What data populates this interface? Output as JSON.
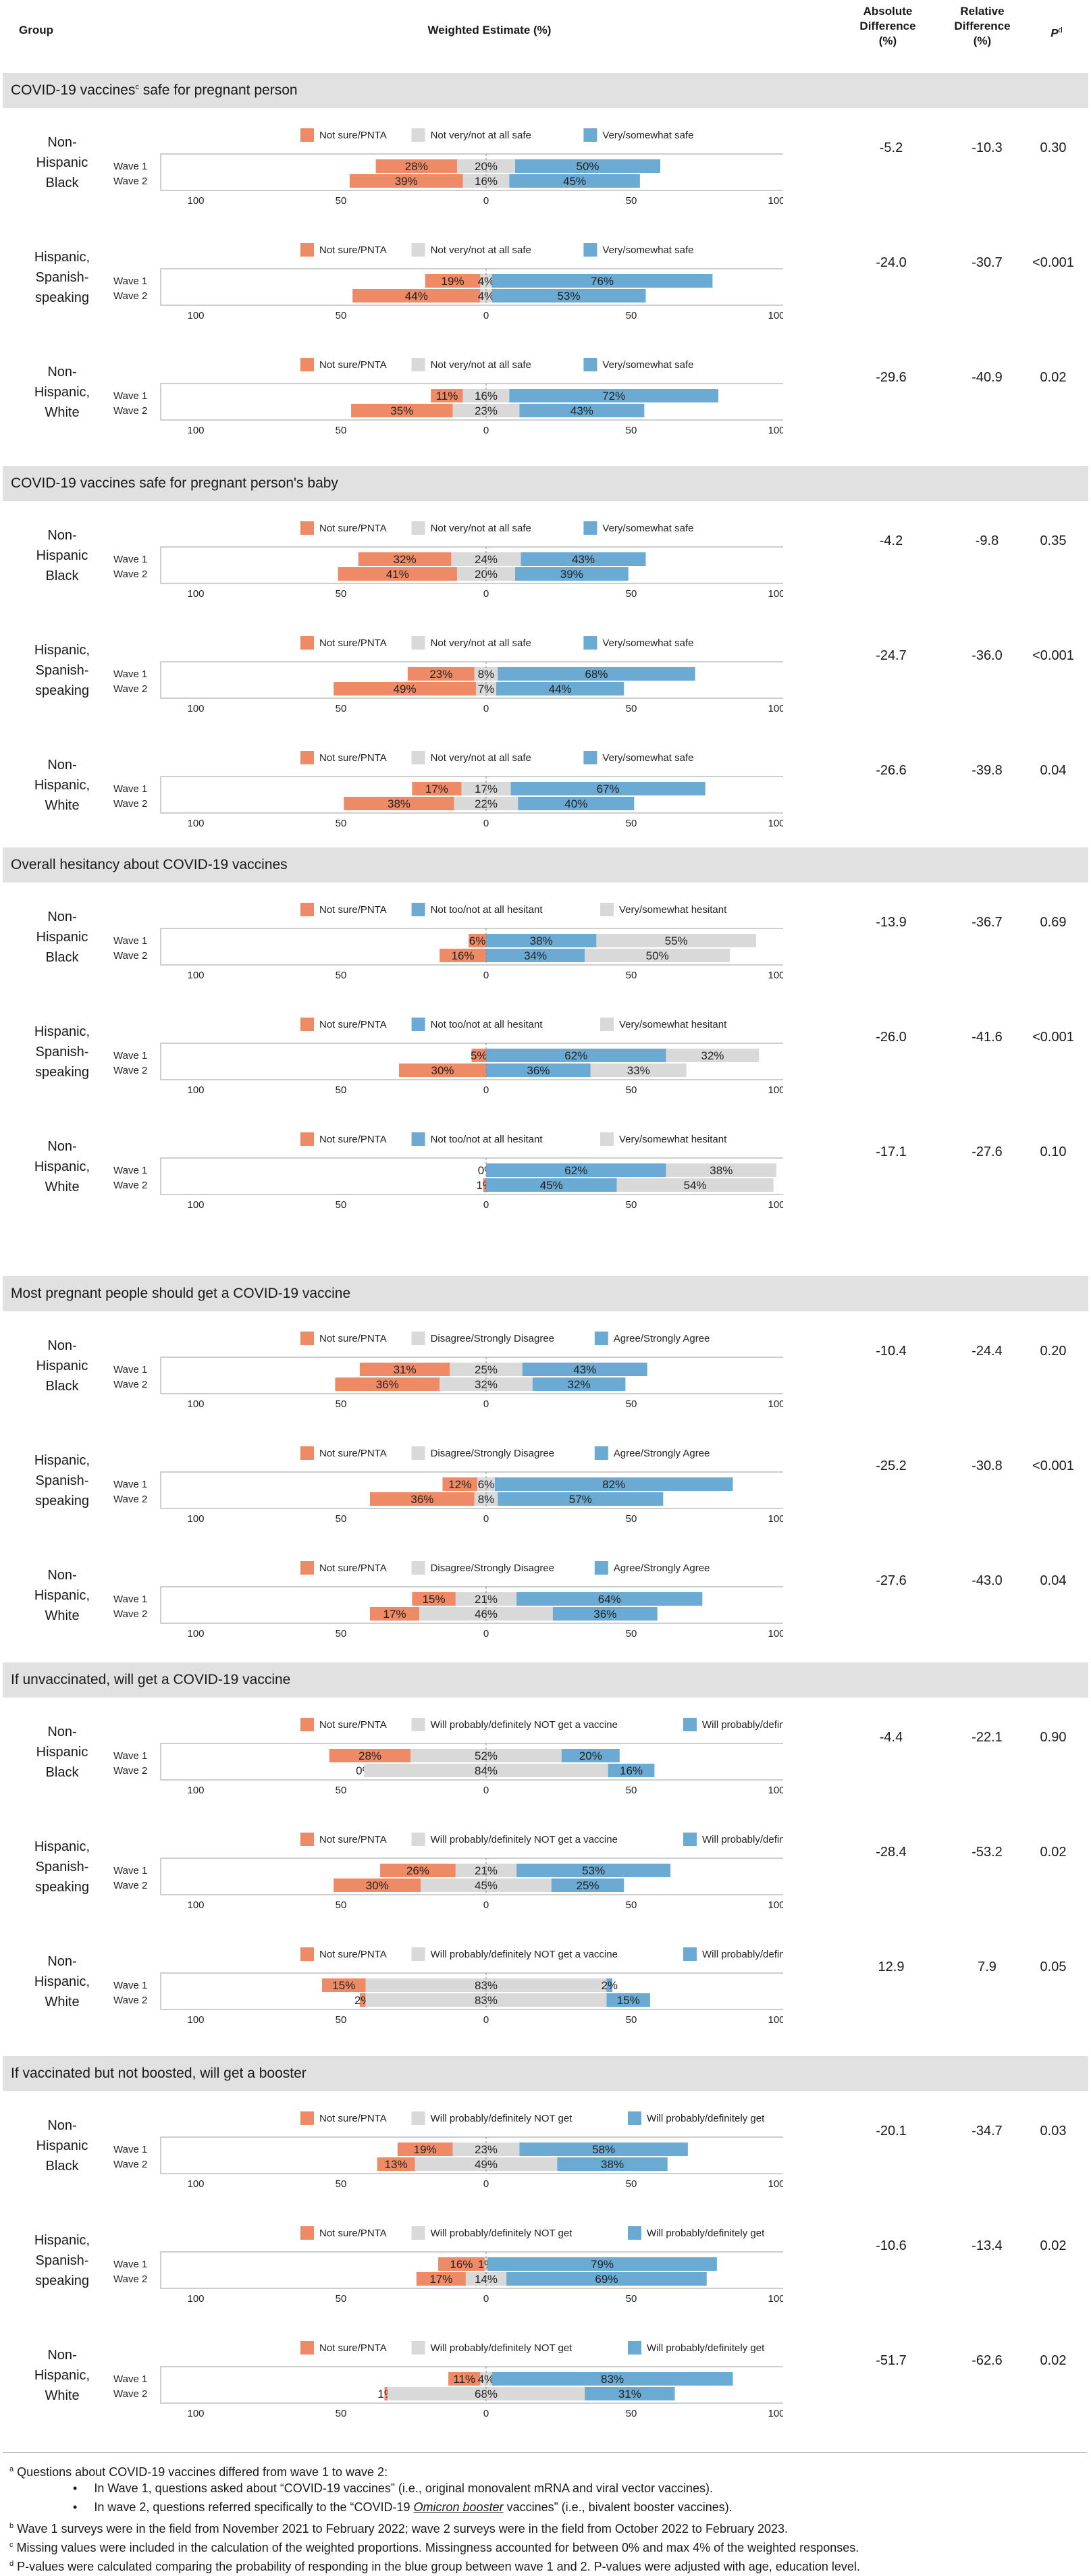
{
  "header": {
    "group": "Group",
    "estimate": "Weighted Estimate (%)",
    "abs_diff": "Absolute Difference (%)",
    "rel_diff": "Relative Difference (%)",
    "p": "P",
    "p_sup": "d"
  },
  "colors": {
    "not_sure": "#ee8a65",
    "grey": "#d9d9d9",
    "blue": "#6aaad3"
  },
  "axis_ticks": [
    "100",
    "50",
    "0",
    "50",
    "100"
  ],
  "chart_data": {
    "type": "bar",
    "sections": [
      {
        "title": "COVID-19 vaccines",
        "title_sup": "c",
        "title_rest": " safe for pregnant person",
        "legend": [
          "Not sure/PNTA",
          "Not very/not at all safe",
          "Very/somewhat safe"
        ],
        "groups": [
          {
            "name": "Non-\nHispanic\nBlack",
            "waves": [
              {
                "label": "Wave 1",
                "not_sure": 28,
                "grey": 20,
                "blue": 50
              },
              {
                "label": "Wave 2",
                "not_sure": 39,
                "grey": 16,
                "blue": 45
              }
            ],
            "abs": "-5.2",
            "rel": "-10.3",
            "p": "0.30"
          },
          {
            "name": "Hispanic,\nSpanish-\nspeaking",
            "waves": [
              {
                "label": "Wave 1",
                "not_sure": 19,
                "grey": 4,
                "blue": 76
              },
              {
                "label": "Wave 2",
                "not_sure": 44,
                "grey": 4,
                "blue": 53
              }
            ],
            "abs": "-24.0",
            "rel": "-30.7",
            "p": "<0.001"
          },
          {
            "name": "Non-\nHispanic,\nWhite",
            "waves": [
              {
                "label": "Wave 1",
                "not_sure": 11,
                "grey": 16,
                "blue": 72
              },
              {
                "label": "Wave 2",
                "not_sure": 35,
                "grey": 23,
                "blue": 43
              }
            ],
            "abs": "-29.6",
            "rel": "-40.9",
            "p": "0.02"
          }
        ]
      },
      {
        "title": "COVID-19 vaccines safe for pregnant person's baby",
        "title_sup": "",
        "title_rest": "",
        "legend": [
          "Not sure/PNTA",
          "Not very/not at all safe",
          "Very/somewhat safe"
        ],
        "groups": [
          {
            "name": "Non-\nHispanic\nBlack",
            "waves": [
              {
                "label": "Wave 1",
                "not_sure": 32,
                "grey": 24,
                "blue": 43
              },
              {
                "label": "Wave 2",
                "not_sure": 41,
                "grey": 20,
                "blue": 39
              }
            ],
            "abs": "-4.2",
            "rel": "-9.8",
            "p": "0.35"
          },
          {
            "name": "Hispanic,\nSpanish-\nspeaking",
            "waves": [
              {
                "label": "Wave 1",
                "not_sure": 23,
                "grey": 8,
                "blue": 68
              },
              {
                "label": "Wave 2",
                "not_sure": 49,
                "grey": 7,
                "blue": 44
              }
            ],
            "abs": "-24.7",
            "rel": "-36.0",
            "p": "<0.001"
          },
          {
            "name": "Non-\nHispanic,\nWhite",
            "waves": [
              {
                "label": "Wave 1",
                "not_sure": 17,
                "grey": 17,
                "blue": 67
              },
              {
                "label": "Wave 2",
                "not_sure": 38,
                "grey": 22,
                "blue": 40
              }
            ],
            "abs": "-26.6",
            "rel": "-39.8",
            "p": "0.04"
          }
        ]
      },
      {
        "title": "Overall hesitancy about COVID-19 vaccines",
        "title_sup": "",
        "title_rest": "",
        "legend": [
          "Not sure/PNTA",
          "Not too/not at all hesitant",
          "Very/somewhat hesitant"
        ],
        "order": "blue_middle",
        "groups": [
          {
            "name": "Non-\nHispanic\nBlack",
            "waves": [
              {
                "label": "Wave 1",
                "not_sure": 6,
                "blue": 38,
                "grey": 55
              },
              {
                "label": "Wave 2",
                "not_sure": 16,
                "blue": 34,
                "grey": 50
              }
            ],
            "abs": "-13.9",
            "rel": "-36.7",
            "p": "0.69"
          },
          {
            "name": "Hispanic,\nSpanish-\nspeaking",
            "waves": [
              {
                "label": "Wave 1",
                "not_sure": 5,
                "blue": 62,
                "grey": 32
              },
              {
                "label": "Wave 2",
                "not_sure": 30,
                "blue": 36,
                "grey": 33
              }
            ],
            "abs": "-26.0",
            "rel": "-41.6",
            "p": "<0.001"
          },
          {
            "name": "Non-\nHispanic,\nWhite",
            "waves": [
              {
                "label": "Wave 1",
                "not_sure": 0,
                "blue": 62,
                "grey": 38
              },
              {
                "label": "Wave 2",
                "not_sure": 1,
                "blue": 45,
                "grey": 54
              }
            ],
            "abs": "-17.1",
            "rel": "-27.6",
            "p": "0.10"
          }
        ]
      },
      {
        "title": "Most pregnant people should get a COVID-19 vaccine",
        "title_sup": "",
        "title_rest": "",
        "legend": [
          "Not sure/PNTA",
          "Disagree/Strongly Disagree",
          "Agree/Strongly Agree"
        ],
        "groups": [
          {
            "name": "Non-\nHispanic\nBlack",
            "waves": [
              {
                "label": "Wave 1",
                "not_sure": 31,
                "grey": 25,
                "blue": 43
              },
              {
                "label": "Wave 2",
                "not_sure": 36,
                "grey": 32,
                "blue": 32
              }
            ],
            "abs": "-10.4",
            "rel": "-24.4",
            "p": "0.20"
          },
          {
            "name": "Hispanic,\nSpanish-\nspeaking",
            "waves": [
              {
                "label": "Wave 1",
                "not_sure": 12,
                "grey": 6,
                "blue": 82
              },
              {
                "label": "Wave 2",
                "not_sure": 36,
                "grey": 8,
                "blue": 57
              }
            ],
            "abs": "-25.2",
            "rel": "-30.8",
            "p": "<0.001"
          },
          {
            "name": "Non-\nHispanic,\nWhite",
            "waves": [
              {
                "label": "Wave 1",
                "not_sure": 15,
                "grey": 21,
                "blue": 64
              },
              {
                "label": "Wave 2",
                "not_sure": 17,
                "grey": 46,
                "blue": 36
              }
            ],
            "abs": "-27.6",
            "rel": "-43.0",
            "p": "0.04"
          }
        ]
      },
      {
        "title": "If unvaccinated, will get a COVID-19 vaccine",
        "title_sup": "",
        "title_rest": "",
        "legend": [
          "Not sure/PNTA",
          "Will probably/definitely NOT get a vaccine",
          "Will probably/definitely get a vaccine"
        ],
        "groups": [
          {
            "name": "Non-\nHispanic\nBlack",
            "waves": [
              {
                "label": "Wave 1",
                "not_sure": 28,
                "grey": 52,
                "blue": 20
              },
              {
                "label": "Wave 2",
                "not_sure": 0,
                "grey": 84,
                "blue": 16
              }
            ],
            "abs": "-4.4",
            "rel": "-22.1",
            "p": "0.90"
          },
          {
            "name": "Hispanic,\nSpanish-\nspeaking",
            "waves": [
              {
                "label": "Wave 1",
                "not_sure": 26,
                "grey": 21,
                "blue": 53
              },
              {
                "label": "Wave 2",
                "not_sure": 30,
                "grey": 45,
                "blue": 25
              }
            ],
            "abs": "-28.4",
            "rel": "-53.2",
            "p": "0.02"
          },
          {
            "name": "Non-\nHispanic,\nWhite",
            "waves": [
              {
                "label": "Wave 1",
                "not_sure": 15,
                "grey": 83,
                "blue": 2
              },
              {
                "label": "Wave 2",
                "not_sure": 2,
                "grey": 83,
                "blue": 15
              }
            ],
            "abs": "12.9",
            "rel": "7.9",
            "p": "0.05"
          }
        ]
      },
      {
        "title": "If vaccinated but not boosted, will get a booster",
        "title_sup": "",
        "title_rest": "",
        "legend": [
          "Not sure/PNTA",
          "Will probably/definitely NOT get",
          "Will probably/definitely get"
        ],
        "groups": [
          {
            "name": "Non-\nHispanic\nBlack",
            "waves": [
              {
                "label": "Wave 1",
                "not_sure": 19,
                "grey": 23,
                "blue": 58
              },
              {
                "label": "Wave 2",
                "not_sure": 13,
                "grey": 49,
                "blue": 38
              }
            ],
            "abs": "-20.1",
            "rel": "-34.7",
            "p": "0.03"
          },
          {
            "name": "Hispanic,\nSpanish-\nspeaking",
            "waves": [
              {
                "label": "Wave 1",
                "not_sure": 16,
                "grey": 1,
                "blue": 79
              },
              {
                "label": "Wave 2",
                "not_sure": 17,
                "grey": 14,
                "blue": 69
              }
            ],
            "abs": "-10.6",
            "rel": "-13.4",
            "p": "0.02"
          },
          {
            "name": "Non-\nHispanic,\nWhite",
            "waves": [
              {
                "label": "Wave 1",
                "not_sure": 11,
                "grey": 4,
                "blue": 83
              },
              {
                "label": "Wave 2",
                "not_sure": 1,
                "grey": 68,
                "blue": 31
              }
            ],
            "abs": "-51.7",
            "rel": "-62.6",
            "p": "0.02"
          }
        ]
      }
    ]
  },
  "footnotes": {
    "a_sup": "a",
    "a_text": " Questions about COVID-19 vaccines differed from wave 1 to wave 2:",
    "a_b1": "In Wave 1, questions asked about “COVID-19 vaccines” (i.e., original monovalent mRNA and viral vector vaccines).",
    "a_b2_pre": "In wave 2, questions referred specifically to the “COVID-19 ",
    "a_b2_em": "Omicron booster",
    "a_b2_post": " vaccines” (i.e., bivalent booster vaccines).",
    "b_sup": "b",
    "b_text": " Wave 1 surveys were in the field from November 2021 to February 2022; wave 2 surveys were in the field from October 2022 to February 2023.",
    "c_sup": "c",
    "c_text": " Missing values were included in the calculation of the weighted proportions. Missingness accounted for between 0% and max 4% of the weighted responses.",
    "d_sup": "d",
    "d_text": " P-values were calculated comparing the probability of responding in the blue group between wave 1 and 2. P-values were adjusted with age, education level."
  }
}
